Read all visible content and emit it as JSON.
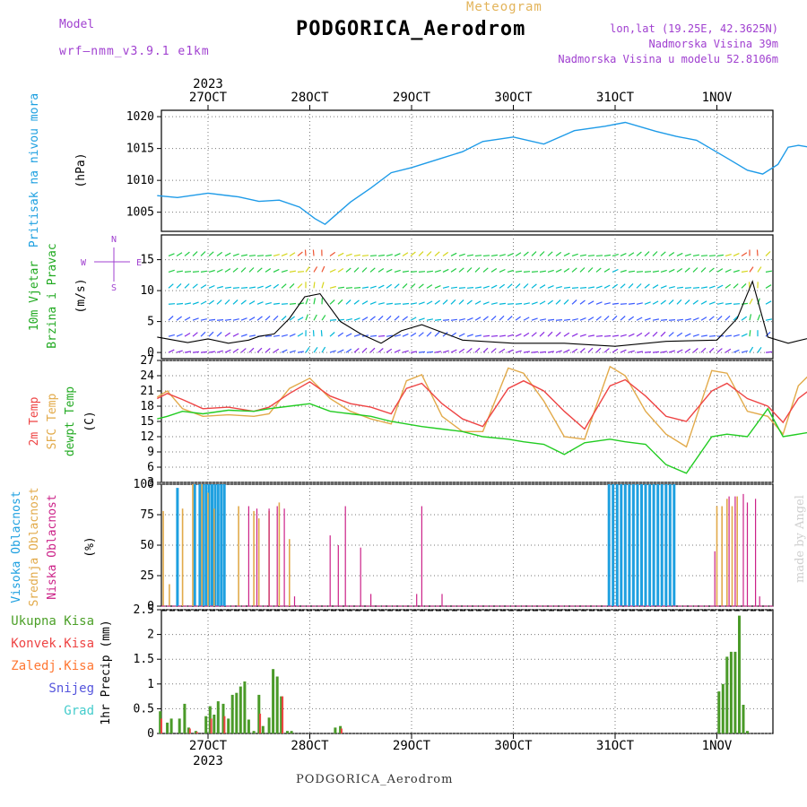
{
  "header": {
    "meteogram_label": "Meteogram",
    "title": "PODGORICA_Aerodrom",
    "model_label": "Model",
    "model_name": "wrf—nmm_v3.9.1 e1km",
    "lonlat": "lon,lat (19.25E, 42.3625N)",
    "elevation": "Nadmorska Visina 39m",
    "model_elevation": "Nadmorska Visina u modelu 52.8106m"
  },
  "footer": {
    "station": "PODGORICA_Aerodrom",
    "credit": "made by Angel"
  },
  "colors": {
    "pressure": "#1e9be8",
    "temp2m": "#ee4444",
    "sfc": "#e2aa4a",
    "dewpt": "#22cc22",
    "high_cloud": "#1ea0e0",
    "mid_cloud": "#e2aa4a",
    "low_cloud": "#cc2288",
    "total_precip": "#4a9a28",
    "conv_precip": "#ee4444"
  },
  "chart_data": [
    {
      "type": "line",
      "panel": "pressure",
      "ylabel": "Pritisak na nivou mora",
      "unit": "(hPa)",
      "ylim": [
        1002,
        1021
      ],
      "yticks": [
        1005,
        1010,
        1015,
        1020
      ],
      "x_days": [
        0,
        0.2,
        0.5,
        0.8,
        1.0,
        1.2,
        1.4,
        1.55,
        1.65,
        1.75,
        1.9,
        2.1,
        2.3,
        2.5,
        2.8,
        3.0,
        3.2,
        3.5,
        3.8,
        4.1,
        4.4,
        4.6,
        4.9,
        5.1,
        5.3,
        5.6,
        5.8,
        5.95,
        6.1,
        6.2
      ],
      "values": [
        1007.6,
        1007.3,
        1008.0,
        1007.4,
        1006.7,
        1006.9,
        1005.8,
        1004.0,
        1003.1,
        1004.5,
        1006.6,
        1008.8,
        1011.2,
        1012.0,
        1013.5,
        1014.5,
        1016.1,
        1016.8,
        1015.7,
        1017.8,
        1018.5,
        1019.1,
        1017.7,
        1016.9,
        1016.3,
        1013.5,
        1011.6,
        1011.0,
        1012.5,
        1015.2
      ],
      "x_tail": [
        6.2,
        6.3,
        6.45
      ],
      "values_tail": [
        1015.2,
        1015.5,
        1015.1
      ]
    },
    {
      "type": "barbs",
      "panel": "wind",
      "ylabel_1": "10m Vjetar",
      "ylabel_2": "Brzina i Pravac",
      "unit": "(m/s)",
      "compass": [
        "N",
        "W",
        "E",
        "S"
      ],
      "ylim": [
        -1,
        19
      ],
      "yticks": [
        0,
        5,
        10,
        15
      ],
      "x_days": [
        0,
        0.3,
        0.5,
        0.7,
        0.9,
        1.0,
        1.15,
        1.3,
        1.45,
        1.6,
        1.8,
        2.0,
        2.2,
        2.4,
        2.6,
        3.0,
        3.5,
        4.0,
        4.5,
        5.0,
        5.5,
        5.7,
        5.85,
        6.0,
        6.2,
        6.45
      ],
      "speed": [
        2.5,
        1.6,
        2.2,
        1.5,
        2.0,
        2.6,
        3.0,
        5.5,
        9.0,
        9.5,
        5.0,
        3.0,
        1.5,
        3.5,
        4.5,
        2.0,
        1.5,
        1.5,
        1.0,
        1.8,
        2.0,
        5.5,
        11.5,
        2.5,
        1.5,
        2.5
      ]
    },
    {
      "type": "line",
      "panel": "temperature",
      "ylabel_1": "2m Temp",
      "ylabel_2": "SFC Temp",
      "ylabel_3": "dewpt Temp",
      "unit": "(C)",
      "ylim": [
        3,
        27
      ],
      "yticks": [
        3,
        6,
        9,
        12,
        15,
        18,
        21,
        24,
        27
      ],
      "x_days": [
        0,
        0.1,
        0.25,
        0.45,
        0.7,
        0.95,
        1.1,
        1.3,
        1.5,
        1.7,
        1.9,
        2.1,
        2.3,
        2.45,
        2.6,
        2.8,
        3.0,
        3.2,
        3.45,
        3.6,
        3.8,
        4.0,
        4.2,
        4.45,
        4.6,
        4.8,
        5.0,
        5.2,
        5.45,
        5.6,
        5.8,
        6.0,
        6.15,
        6.3,
        6.45
      ],
      "temp2m": [
        19.5,
        20.5,
        19.3,
        17.5,
        17.8,
        17.0,
        17.8,
        20.5,
        22.8,
        20.0,
        18.5,
        17.8,
        16.5,
        21.5,
        22.5,
        18.5,
        15.5,
        14.0,
        21.5,
        23.0,
        21.0,
        17.0,
        13.5,
        22.0,
        23.2,
        20.0,
        16.0,
        15.0,
        21.0,
        22.5,
        19.5,
        18.0,
        14.8,
        19.5,
        21.8
      ],
      "sfc": [
        19.8,
        21.0,
        17.5,
        16.0,
        16.3,
        16.0,
        16.5,
        21.5,
        23.5,
        19.5,
        17.0,
        15.5,
        14.5,
        23.0,
        24.2,
        16.0,
        13.0,
        13.0,
        25.5,
        24.5,
        19.0,
        12.0,
        11.5,
        25.8,
        24.0,
        17.0,
        12.5,
        10.0,
        25.0,
        24.5,
        17.0,
        16.0,
        12.5,
        22.0,
        25.0
      ],
      "dewpt": [
        15.5,
        16.0,
        17.0,
        16.5,
        17.2,
        17.0,
        17.5,
        18.0,
        18.5,
        17.0,
        16.5,
        16.0,
        15.0,
        14.5,
        14.0,
        13.5,
        13.0,
        12.0,
        11.5,
        11.0,
        10.5,
        8.5,
        10.8,
        11.5,
        11.0,
        10.5,
        6.5,
        4.8,
        12.0,
        12.5,
        12.0,
        17.5,
        12.0,
        12.5,
        13.0
      ]
    },
    {
      "type": "bar",
      "panel": "clouds",
      "ylabel_1": "Visoka Oblacnost",
      "ylabel_2": "Srednja Oblacnost",
      "ylabel_3": "Niska Oblacnost",
      "unit": "(%)",
      "ylim": [
        0,
        100
      ],
      "yticks": [
        0,
        25,
        50,
        75,
        100
      ],
      "high_x": [
        0.2,
        0.37,
        0.42,
        0.45,
        0.48,
        0.51,
        0.54,
        0.57,
        0.6,
        0.63,
        0.66,
        4.44,
        4.48,
        4.52,
        4.56,
        4.6,
        4.64,
        4.68,
        4.72,
        4.76,
        4.8,
        4.84,
        4.88,
        4.92,
        4.96,
        5.0,
        5.04,
        5.08
      ],
      "high_v": [
        97,
        100,
        100,
        100,
        100,
        100,
        100,
        100,
        100,
        100,
        100,
        100,
        100,
        100,
        100,
        100,
        100,
        100,
        100,
        100,
        100,
        100,
        100,
        100,
        100,
        100,
        100,
        100
      ],
      "mid_x": [
        0.06,
        0.12,
        0.25,
        0.35,
        0.44,
        0.5,
        0.56,
        0.8,
        0.95,
        1.0,
        1.1,
        1.2,
        1.3,
        5.5,
        5.55,
        5.6,
        5.65,
        5.7
      ],
      "mid_v": [
        78,
        18,
        80,
        100,
        100,
        93,
        80,
        82,
        78,
        72,
        78,
        85,
        55,
        82,
        82,
        88,
        82,
        90
      ],
      "low_x": [
        0.9,
        0.98,
        1.1,
        1.18,
        1.25,
        1.35,
        1.7,
        1.78,
        1.85,
        2.0,
        2.1,
        2.55,
        2.6,
        2.8,
        5.48,
        5.62,
        5.68,
        5.76,
        5.8,
        5.88,
        5.92
      ],
      "low_v": [
        82,
        80,
        80,
        82,
        80,
        8,
        58,
        50,
        82,
        48,
        10,
        10,
        82,
        10,
        45,
        90,
        90,
        92,
        85,
        88,
        8
      ]
    },
    {
      "type": "bar",
      "panel": "precip",
      "ylabel": "1hr Precip (mm)",
      "legend": [
        "Ukupna Kisa",
        "Konvek.Kisa",
        "Zaledj.Kisa",
        "Snijeg",
        "Grad"
      ],
      "legend_colors": [
        "#4ca028",
        "#ee4444",
        "#ff7733",
        "#5555dd",
        "#44cccc"
      ],
      "ylim": [
        0,
        2.5
      ],
      "yticks": [
        0,
        0.5,
        1,
        1.5,
        2,
        2.5
      ],
      "x": [
        0.03,
        0.1,
        0.14,
        0.22,
        0.27,
        0.31,
        0.38,
        0.48,
        0.52,
        0.56,
        0.6,
        0.65,
        0.7,
        0.74,
        0.78,
        0.82,
        0.86,
        0.9,
        0.95,
        1.0,
        1.04,
        1.1,
        1.14,
        1.18,
        1.22,
        1.28,
        1.32,
        1.75,
        1.8,
        5.52,
        5.56,
        5.6,
        5.64,
        5.68,
        5.72,
        5.76,
        5.8
      ],
      "total": [
        0.45,
        0.22,
        0.3,
        0.3,
        0.6,
        0.12,
        0.05,
        0.35,
        0.55,
        0.38,
        0.65,
        0.6,
        0.3,
        0.78,
        0.82,
        0.95,
        1.05,
        0.28,
        0.05,
        0.78,
        0.15,
        0.32,
        1.3,
        1.15,
        0.75,
        0.05,
        0.05,
        0.12,
        0.15,
        0.85,
        1.0,
        1.55,
        1.65,
        1.65,
        2.38,
        0.58,
        0.05
      ],
      "conv": [
        0.3,
        0.0,
        0.0,
        0.0,
        0.0,
        0.1,
        0.03,
        0.0,
        0.3,
        0.0,
        0.0,
        0.35,
        0.0,
        0.0,
        0.0,
        0.0,
        0.0,
        0.0,
        0.0,
        0.4,
        0.0,
        0.0,
        0.0,
        0.0,
        0.75,
        0.0,
        0.0,
        0.0,
        0.1,
        0.0,
        0.0,
        0.0,
        0.0,
        0.0,
        0.0,
        0.0,
        0.0
      ]
    }
  ],
  "x_axis": {
    "year": "2023",
    "days": [
      "27OCT",
      "28OCT",
      "29OCT",
      "30OCT",
      "31OCT",
      "1NOV"
    ]
  }
}
